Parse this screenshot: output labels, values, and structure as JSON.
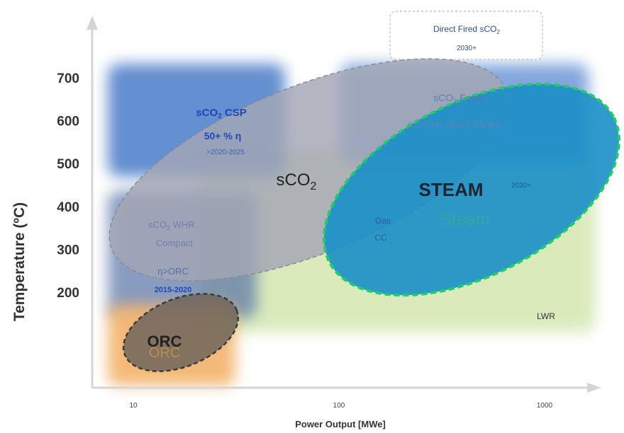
{
  "chart_data": {
    "type": "scatter",
    "title": "",
    "xlabel": "Power Output [MWe]",
    "ylabel": "Temperature (ºC)",
    "x_scale": "log",
    "x_ticks": [
      "10",
      "100",
      "1000"
    ],
    "y_ticks": [
      "200",
      "300",
      "400",
      "500",
      "600",
      "700"
    ],
    "ylim": [
      80,
      780
    ],
    "xlim": [
      8,
      2500
    ],
    "grid": false,
    "legend": "none",
    "regions": [
      {
        "name": "sCO2 CSP",
        "x_range": [
          10,
          35
        ],
        "y_range": [
          500,
          690
        ],
        "color": "#4a78c8"
      },
      {
        "name": "sCO2 Fossil",
        "x_range": [
          100,
          1000
        ],
        "y_range": [
          540,
          690
        ],
        "color": "#4a78c8"
      },
      {
        "name": "sCO2 WHR Compact",
        "x_range": [
          9,
          35
        ],
        "y_range": [
          180,
          420
        ],
        "color": "#5070b0"
      },
      {
        "name": "ORC",
        "x_range": [
          9,
          30
        ],
        "y_range": [
          80,
          180
        ],
        "color": "#f2b46a"
      },
      {
        "name": "LWR",
        "x_range": [
          50,
          2000
        ],
        "y_range": [
          120,
          390
        ],
        "color": "#cfe3a8"
      }
    ],
    "ellipses": [
      {
        "name": "sCO2",
        "x_range": [
          10,
          300
        ],
        "y_range": [
          200,
          720
        ],
        "color": "#9a9aa8"
      },
      {
        "name": "STEAM",
        "x_range": [
          80,
          2500
        ],
        "y_range": [
          250,
          620
        ],
        "color": "#1b8fc8"
      },
      {
        "name": "ORC",
        "x_range": [
          10,
          30
        ],
        "y_range": [
          90,
          180
        ],
        "color": "#6a6158"
      }
    ]
  },
  "labels": {
    "direct_fired_title": "Direct Fired sCO",
    "direct_fired_sub": "2",
    "direct_fired_year": "2030+",
    "csp_title": "sCO",
    "csp_sub": "2",
    "csp_suffix": " CSP",
    "csp_line2": "50+ % η",
    "csp_line3": ">2020-2025",
    "fossil_title": "sCO",
    "fossil_sub": "2",
    "fossil_suffix": " Fossil",
    "fossil_line2": "η",
    "fossil_line2_rest": " 2-5 pts above Steam",
    "sco2_main": "sCO",
    "sco2_main_sub": "2",
    "steam_main": "STEAM",
    "steam_ghost": "Steam",
    "steam_year": "2030+",
    "whr_line1": "sCO",
    "whr_line1_sub": "2",
    "whr_line1_suffix": " WHR",
    "whr_line2": "Compact",
    "whr_line3": "η",
    "whr_line3_rest": ">ORC",
    "whr_line4": "2015-2020",
    "combined_line1": "Gas",
    "combined_line2": "CC",
    "orc_main": "ORC",
    "orc_ghost": "ORC",
    "lwr": "LWR"
  }
}
